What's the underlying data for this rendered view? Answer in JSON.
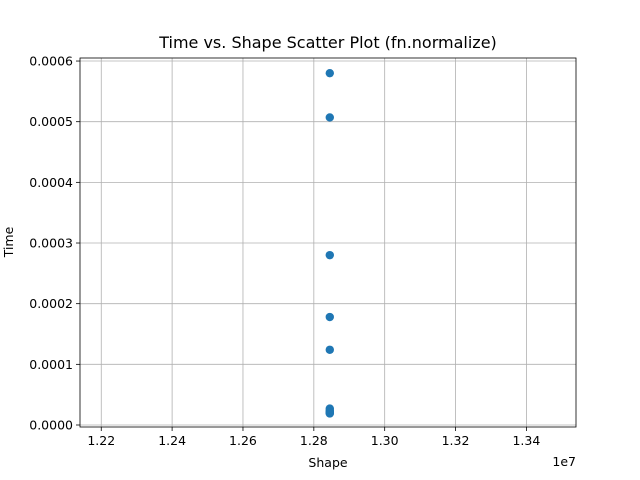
{
  "chart_data": {
    "type": "scatter",
    "title": "Time vs. Shape Scatter Plot (fn.normalize)",
    "xlabel": "Shape",
    "ylabel": "Time",
    "x_offset_text": "1e7",
    "xlim": [
      12140000,
      13540000
    ],
    "ylim": [
      -3.3e-06,
      0.000605
    ],
    "xticks": [
      {
        "value": 12200000,
        "label": "1.22"
      },
      {
        "value": 12400000,
        "label": "1.24"
      },
      {
        "value": 12600000,
        "label": "1.26"
      },
      {
        "value": 12800000,
        "label": "1.28"
      },
      {
        "value": 13000000,
        "label": "1.30"
      },
      {
        "value": 13200000,
        "label": "1.32"
      },
      {
        "value": 13400000,
        "label": "1.34"
      }
    ],
    "yticks": [
      {
        "value": 0.0,
        "label": "0.0000"
      },
      {
        "value": 0.0001,
        "label": "0.0001"
      },
      {
        "value": 0.0002,
        "label": "0.0002"
      },
      {
        "value": 0.0003,
        "label": "0.0003"
      },
      {
        "value": 0.0004,
        "label": "0.0004"
      },
      {
        "value": 0.0005,
        "label": "0.0005"
      },
      {
        "value": 0.0006,
        "label": "0.0006"
      }
    ],
    "grid": true,
    "marker_color": "#1f77b4",
    "points": [
      {
        "x": 12845056,
        "y": 0.00058
      },
      {
        "x": 12845056,
        "y": 0.000507
      },
      {
        "x": 12845056,
        "y": 0.00028
      },
      {
        "x": 12845056,
        "y": 0.000178
      },
      {
        "x": 12845056,
        "y": 0.000124
      },
      {
        "x": 12845056,
        "y": 2.7e-05
      },
      {
        "x": 12845056,
        "y": 2.4e-05
      },
      {
        "x": 12845056,
        "y": 2.2e-05
      },
      {
        "x": 12845056,
        "y": 2.1e-05
      },
      {
        "x": 12845056,
        "y": 2e-05
      },
      {
        "x": 12845056,
        "y": 2e-05
      },
      {
        "x": 12845056,
        "y": 1.9e-05
      }
    ]
  }
}
